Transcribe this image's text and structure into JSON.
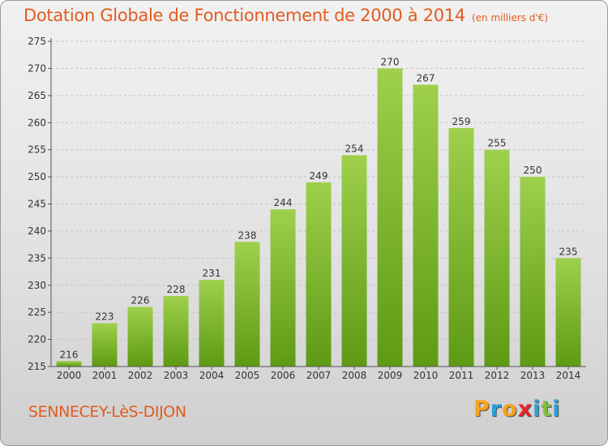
{
  "header": {
    "title": "Dotation Globale de Fonctionnement de 2000 à 2014",
    "subtitle": "(en milliers d'€)"
  },
  "footer": {
    "commune": "SENNECEY-LèS-DIJON",
    "logo_letters": [
      "P",
      "r",
      "o",
      "x",
      "i",
      "t",
      "i"
    ],
    "logo_colors": [
      "#f7a21b",
      "#2a9fd8",
      "#f7a21b",
      "#e8232a",
      "#2a9fd8",
      "#7bc142",
      "#2a9fd8"
    ]
  },
  "colors": {
    "bar_light": "#9ed04c",
    "bar_dark": "#5e9a14",
    "grid": "#c4c4c4",
    "axis": "#555555",
    "text": "#333333"
  },
  "chart_data": {
    "type": "bar",
    "title": "Dotation Globale de Fonctionnement de 2000 à 2014",
    "subtitle": "(en milliers d'€)",
    "categories": [
      "2000",
      "2001",
      "2002",
      "2003",
      "2004",
      "2005",
      "2006",
      "2007",
      "2008",
      "2009",
      "2010",
      "2011",
      "2012",
      "2013",
      "2014"
    ],
    "values": [
      216,
      223,
      226,
      228,
      231,
      238,
      244,
      249,
      254,
      270,
      267,
      259,
      255,
      250,
      235
    ],
    "ylim": [
      215,
      275
    ],
    "yticks": [
      215,
      220,
      225,
      230,
      235,
      240,
      245,
      250,
      255,
      260,
      265,
      270,
      275
    ],
    "grid": true,
    "legend": "none"
  }
}
